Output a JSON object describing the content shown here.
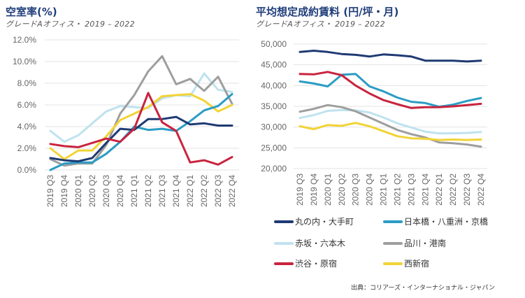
{
  "chart_data": [
    {
      "type": "line",
      "title": "空室率(%)",
      "subtitle": "グレードAオフィス・ 2019 – 2022",
      "xlabel": "",
      "ylabel": "",
      "categories": [
        "2019 Q3",
        "2019 Q4",
        "2020 Q1",
        "2020 Q2",
        "2020 Q3",
        "2020 Q4",
        "2021 Q1",
        "2021 Q2",
        "2021 Q3",
        "2021 Q4",
        "2022 Q1",
        "2022 Q2",
        "2022 Q3",
        "2022 Q4"
      ],
      "ylim": [
        0,
        12
      ],
      "yticks": [
        0,
        2,
        4,
        6,
        8,
        10,
        12
      ],
      "ytick_labels": [
        "0.0%",
        "2.0%",
        "4.0%",
        "6.0%",
        "8.0%",
        "10.0%",
        "12.0%"
      ],
      "grid": true,
      "series": [
        {
          "name": "赤坂・六本木",
          "color": "#bfe2ef",
          "values": [
            3.6,
            2.6,
            3.2,
            4.3,
            5.4,
            5.9,
            5.8,
            5.7,
            6.6,
            6.9,
            6.8,
            8.9,
            7.4,
            7.2
          ]
        },
        {
          "name": "品川・港南",
          "color": "#9e9e9e",
          "values": [
            1.0,
            0.4,
            0.6,
            0.6,
            2.3,
            5.2,
            6.9,
            9.1,
            10.5,
            7.9,
            8.4,
            7.3,
            8.6,
            6.1
          ]
        },
        {
          "name": "西新宿",
          "color": "#f2d335",
          "values": [
            2.0,
            1.0,
            1.8,
            1.8,
            3.1,
            4.6,
            5.2,
            5.8,
            6.8,
            6.9,
            7.0,
            6.4,
            5.4,
            6.0
          ]
        },
        {
          "name": "日本橋・八重洲・京橋",
          "color": "#2a9cc4",
          "values": [
            0.0,
            0.6,
            0.7,
            0.7,
            1.5,
            2.6,
            4.0,
            3.7,
            3.8,
            3.6,
            4.5,
            5.5,
            5.9,
            7.0
          ]
        },
        {
          "name": "丸の内・大手町",
          "color": "#1f3a73",
          "values": [
            1.1,
            0.9,
            0.8,
            1.1,
            2.5,
            3.8,
            3.7,
            4.7,
            4.7,
            4.9,
            4.2,
            4.3,
            4.1,
            4.1
          ]
        },
        {
          "name": "渋谷・原宿",
          "color": "#c8243e",
          "values": [
            2.4,
            2.2,
            2.1,
            2.5,
            2.9,
            2.6,
            3.8,
            7.1,
            4.4,
            3.6,
            0.7,
            0.9,
            0.5,
            1.2
          ]
        }
      ]
    },
    {
      "type": "line",
      "title": "平均想定成約賃料 (円/坪・月)",
      "subtitle": "グレードAオフィス・ 2019 – 2022",
      "xlabel": "",
      "ylabel": "",
      "categories": [
        "2019 Q3",
        "2019 Q4",
        "2020 Q1",
        "2020 Q2",
        "2020 Q3",
        "2020 Q4",
        "2021 Q1",
        "2021 Q2",
        "2021 Q3",
        "2021 Q4",
        "2022 Q1",
        "2022 Q2",
        "2022 Q3",
        "2022 Q4"
      ],
      "ylim": [
        20000,
        50000
      ],
      "yticks": [
        20000,
        25000,
        30000,
        35000,
        40000,
        45000,
        50000
      ],
      "ytick_labels": [
        "20,000",
        "25,000",
        "30,000",
        "35,000",
        "40,000",
        "45,000",
        "50,000"
      ],
      "grid": true,
      "series": [
        {
          "name": "赤坂・六本木",
          "color": "#bfe2ef",
          "values": [
            32200,
            32900,
            33900,
            34100,
            34000,
            33500,
            32300,
            30900,
            29900,
            28900,
            28500,
            28500,
            28600,
            28800
          ]
        },
        {
          "name": "品川・港南",
          "color": "#9e9e9e",
          "values": [
            33700,
            34400,
            35300,
            34800,
            33800,
            32300,
            30800,
            29300,
            28300,
            27500,
            26300,
            26100,
            25800,
            25300
          ]
        },
        {
          "name": "西新宿",
          "color": "#f2d335",
          "values": [
            30200,
            29500,
            30500,
            30300,
            31000,
            30200,
            29000,
            27800,
            27300,
            27200,
            26900,
            27000,
            26900,
            27000
          ]
        },
        {
          "name": "日本橋・八重洲・京橋",
          "color": "#2a9cc4",
          "values": [
            41000,
            40500,
            39800,
            42600,
            42800,
            39800,
            38600,
            37100,
            36100,
            35800,
            34900,
            35400,
            36300,
            37000
          ]
        },
        {
          "name": "渋谷・原宿",
          "color": "#c8243e",
          "values": [
            42800,
            42700,
            43300,
            42500,
            40000,
            38100,
            36500,
            35500,
            34600,
            34800,
            34800,
            35000,
            35300,
            35600
          ]
        },
        {
          "name": "丸の内・大手町",
          "color": "#1f3a73",
          "values": [
            48100,
            48400,
            48100,
            47600,
            47400,
            47000,
            47500,
            47300,
            47000,
            46000,
            46000,
            46000,
            45800,
            46000
          ]
        }
      ]
    }
  ],
  "legend": {
    "placement": "bottom-right",
    "items": [
      {
        "label": "丸の内・大手町",
        "color": "#1f3a73"
      },
      {
        "label": "日本橋・八重洲・京橋",
        "color": "#2a9cc4"
      },
      {
        "label": "赤坂・六本木",
        "color": "#bfe2ef"
      },
      {
        "label": "品川・港南",
        "color": "#9e9e9e"
      },
      {
        "label": "渋谷・原宿",
        "color": "#c8243e"
      },
      {
        "label": "西新宿",
        "color": "#f2d335"
      }
    ]
  },
  "source": "出典：コリアーズ・インターナショナル・ジャパン"
}
